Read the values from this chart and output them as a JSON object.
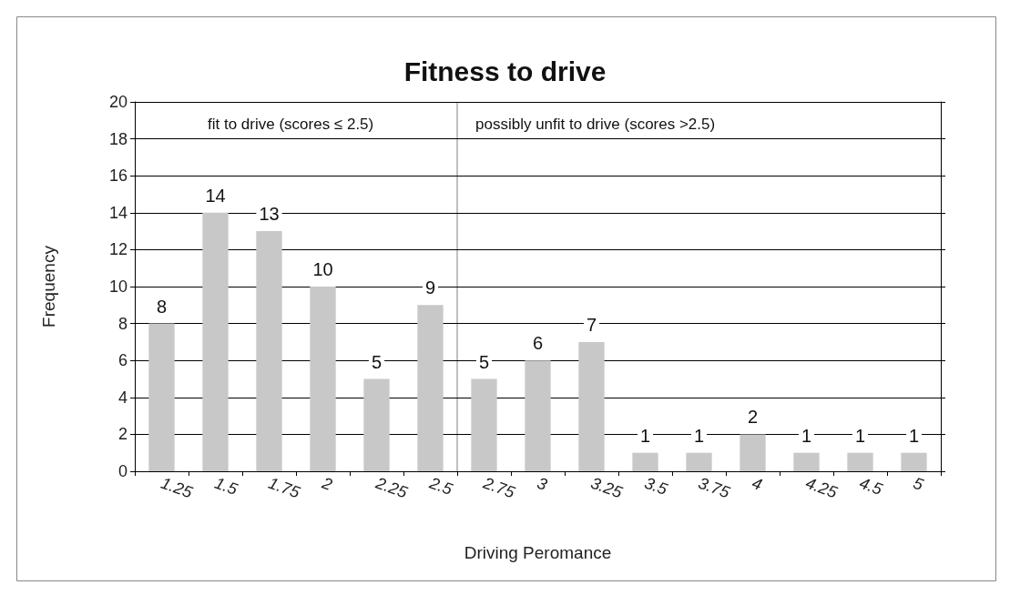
{
  "chart_data": {
    "type": "bar",
    "title": "Fitness to drive",
    "xlabel": "Driving Peromance",
    "ylabel": "Frequency",
    "categories": [
      "1.25",
      "1.5",
      "1.75",
      "2",
      "2.25",
      "2.5",
      "2.75",
      "3",
      "3.25",
      "3.5",
      "3.75",
      "4",
      "4.25",
      "4.5",
      "5"
    ],
    "values": [
      8,
      14,
      13,
      10,
      5,
      9,
      5,
      6,
      7,
      1,
      1,
      2,
      1,
      1,
      1
    ],
    "color": "#c8c8c8",
    "ylim": [
      0,
      20
    ],
    "yticks": [
      0,
      2,
      4,
      6,
      8,
      10,
      12,
      14,
      16,
      18,
      20
    ],
    "grid": "y",
    "data_labels": true,
    "ref_lines": [
      {
        "axis": "x",
        "value": "2.5",
        "label": null,
        "color": "#808080"
      }
    ],
    "annotations": [
      "fit to drive (scores ≤ 2.5)",
      "possibly unfit to drive (scores >2.5)"
    ]
  }
}
